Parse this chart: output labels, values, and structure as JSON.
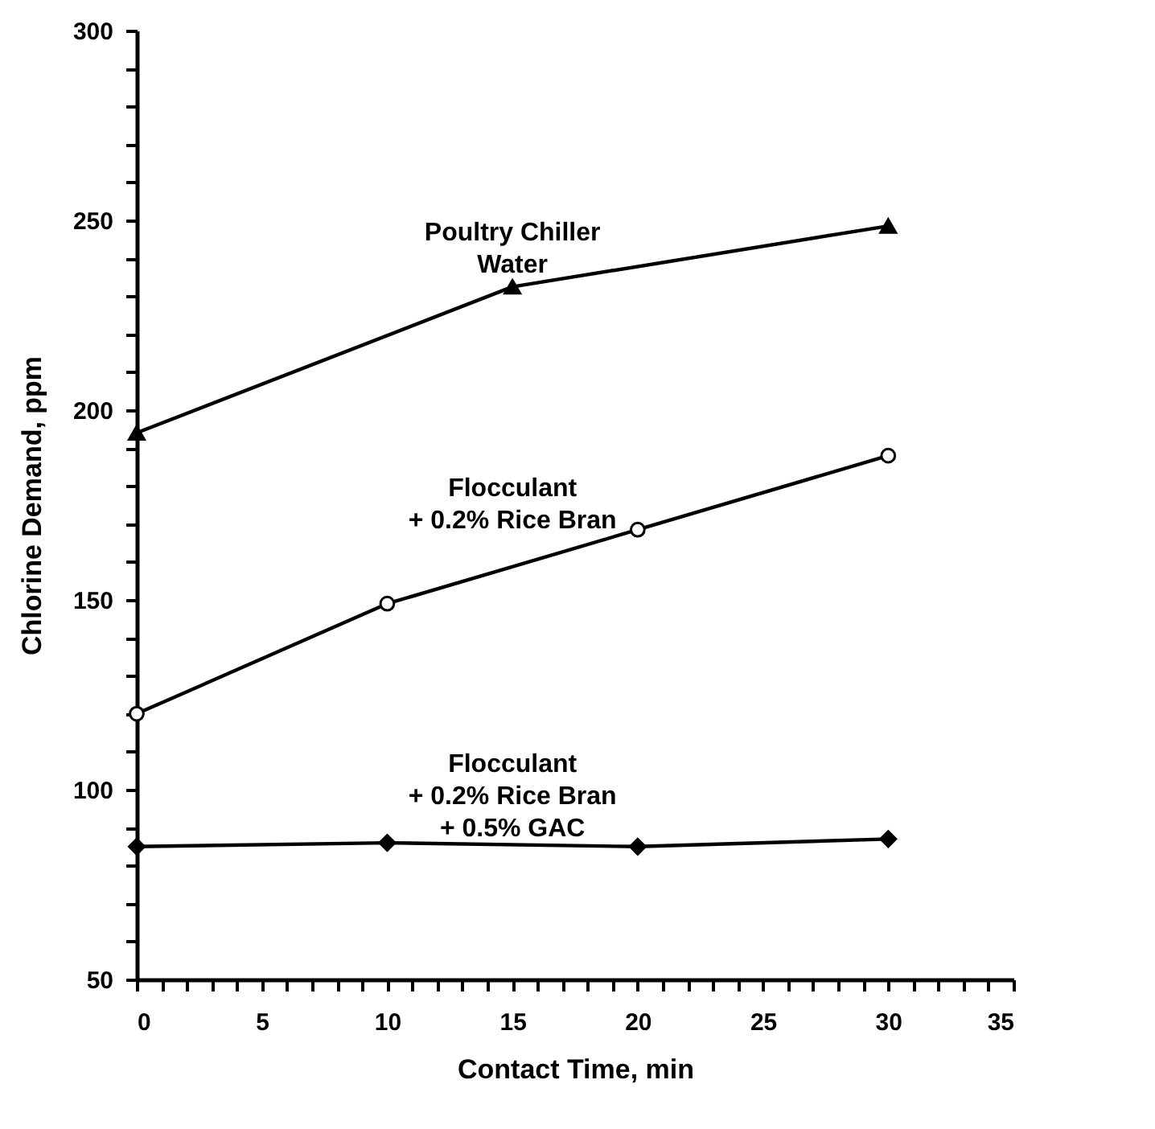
{
  "chart_data": {
    "type": "line",
    "xlabel": "Contact Time, min",
    "ylabel": "Chlorine Demand, ppm",
    "xlim": [
      0,
      35
    ],
    "ylim": [
      50,
      300
    ],
    "xticks": [
      0,
      {
        "value": 1,
        "label": null
      },
      {
        "value": 2,
        "label": null
      },
      {
        "value": 3,
        "label": null
      },
      {
        "value": 4,
        "label": null
      },
      5,
      {
        "value": 6,
        "label": null
      },
      {
        "value": 7,
        "label": null
      },
      {
        "value": 8,
        "label": null
      },
      {
        "value": 9,
        "label": null
      },
      10,
      {
        "value": 11,
        "label": null
      },
      {
        "value": 12,
        "label": null
      },
      {
        "value": 13,
        "label": null
      },
      {
        "value": 14,
        "label": null
      },
      15,
      {
        "value": 16,
        "label": null
      },
      {
        "value": 17,
        "label": null
      },
      {
        "value": 18,
        "label": null
      },
      {
        "value": 19,
        "label": null
      },
      20,
      {
        "value": 21,
        "label": null
      },
      {
        "value": 22,
        "label": null
      },
      {
        "value": 23,
        "label": null
      },
      {
        "value": 24,
        "label": null
      },
      25,
      {
        "value": 26,
        "label": null
      },
      {
        "value": 27,
        "label": null
      },
      {
        "value": 28,
        "label": null
      },
      {
        "value": 29,
        "label": null
      },
      30,
      {
        "value": 31,
        "label": null
      },
      {
        "value": 32,
        "label": null
      },
      {
        "value": 33,
        "label": null
      },
      {
        "value": 34,
        "label": null
      },
      35
    ],
    "yticks": [
      50,
      {
        "value": 60,
        "label": null
      },
      {
        "value": 70,
        "label": null
      },
      {
        "value": 80,
        "label": null
      },
      {
        "value": 90,
        "label": null
      },
      100,
      {
        "value": 110,
        "label": null
      },
      {
        "value": 120,
        "label": null
      },
      {
        "value": 130,
        "label": null
      },
      {
        "value": 140,
        "label": null
      },
      150,
      {
        "value": 160,
        "label": null
      },
      {
        "value": 170,
        "label": null
      },
      {
        "value": 180,
        "label": null
      },
      {
        "value": 190,
        "label": null
      },
      200,
      {
        "value": 210,
        "label": null
      },
      {
        "value": 220,
        "label": null
      },
      {
        "value": 230,
        "label": null
      },
      {
        "value": 240,
        "label": null
      },
      250,
      {
        "value": 260,
        "label": null
      },
      {
        "value": 270,
        "label": null
      },
      {
        "value": 280,
        "label": null
      },
      {
        "value": 290,
        "label": null
      },
      300
    ],
    "grid": false,
    "line_style": "solid",
    "series": [
      {
        "name": "Poultry Chiller\nWater",
        "color": "#000000",
        "marker": "triangle",
        "x": [
          0,
          15,
          30
        ],
        "values": [
          194,
          232.5,
          248.5
        ]
      },
      {
        "name": "Flocculant\n+ 0.2% Rice Bran",
        "color": "#000000",
        "marker": "circle",
        "x": [
          0,
          10,
          20,
          30
        ],
        "values": [
          120,
          149,
          168.5,
          188
        ]
      },
      {
        "name": "Flocculant\n+ 0.2% Rice Bran\n+ 0.5% GAC",
        "color": "#000000",
        "marker": "diamond",
        "x": [
          0,
          10,
          20,
          30
        ],
        "values": [
          85,
          86,
          85,
          87
        ]
      }
    ]
  }
}
